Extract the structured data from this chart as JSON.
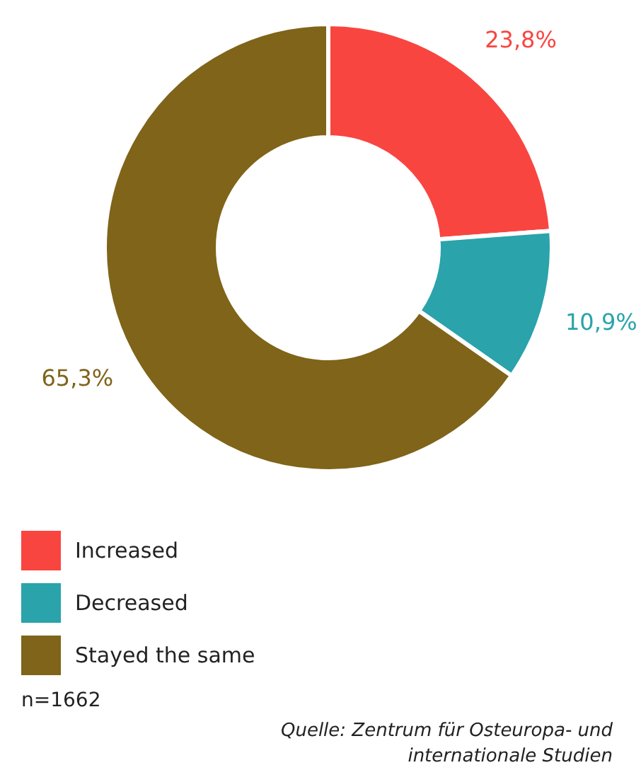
{
  "chart_data": {
    "type": "donut",
    "categories": [
      "Increased",
      "Decreased",
      "Stayed the same"
    ],
    "values": [
      23.8,
      10.9,
      65.3
    ],
    "value_labels": [
      "23,8%",
      "10,9%",
      "65,3%"
    ],
    "colors": [
      "#f94540",
      "#2aa3ab",
      "#7f6419"
    ],
    "legend": "bottom left",
    "annotations": [
      "n=1662",
      "Quelle: Zentrum für Osteuropa- und internationale Studien"
    ]
  }
}
